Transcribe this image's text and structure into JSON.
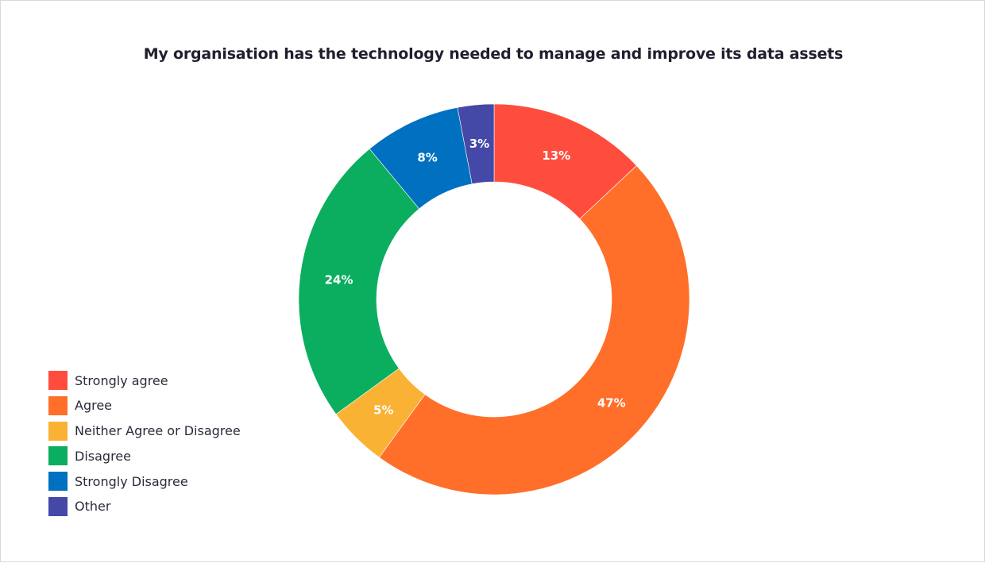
{
  "chart_data": {
    "type": "pie",
    "title": "My organisation has the technology needed to manage and improve its data assets",
    "categories": [
      "Strongly agree",
      "Agree",
      "Neither Agree or Disagree",
      "Disagree",
      "Strongly Disagree",
      "Other"
    ],
    "values": [
      13,
      47,
      5,
      24,
      8,
      3
    ],
    "labels": [
      "13%",
      "47%",
      "5%",
      "24%",
      "8%",
      "3%"
    ],
    "colors": [
      "#ff4d3d",
      "#ff6f2a",
      "#f9b234",
      "#0aae5e",
      "#0070c0",
      "#4448a7"
    ],
    "donut": true,
    "legend_position": "bottom-left"
  }
}
